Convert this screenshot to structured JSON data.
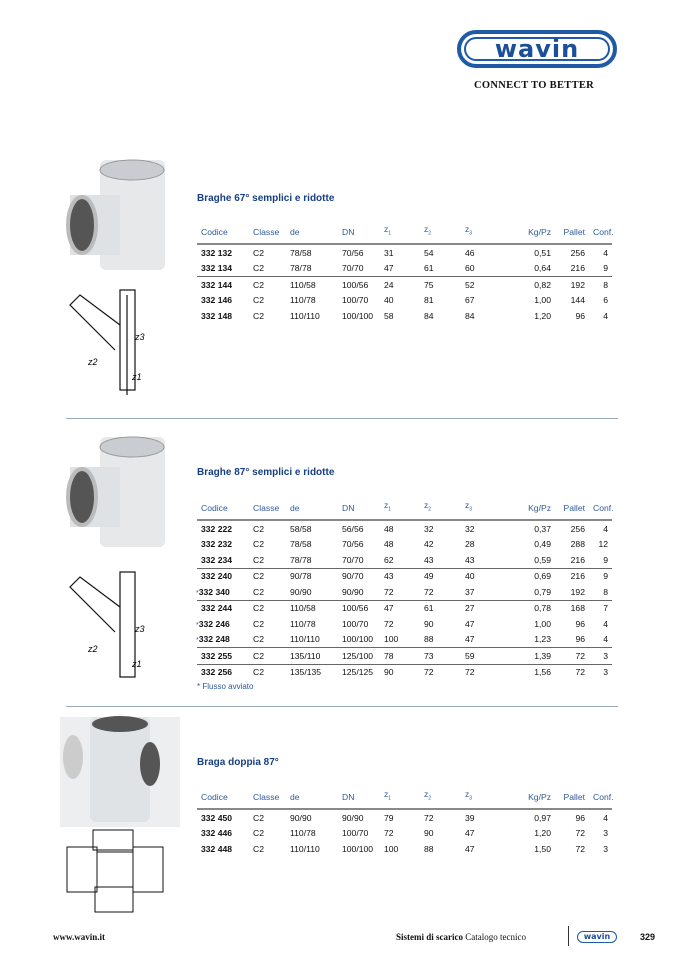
{
  "brand": {
    "logo_text": "wavin",
    "tagline": "CONNECT TO BETTER",
    "logo_color": "#1f5aa6"
  },
  "columns": [
    "Codice",
    "Classe",
    "de",
    "DN",
    "z1",
    "z2",
    "z3",
    "Kg/Pz",
    "Pallet",
    "Conf."
  ],
  "sections": [
    {
      "title": "Braghe 67° semplici e ridotte",
      "rows": [
        {
          "code": "332 132",
          "cls": "C2",
          "de": "78/58",
          "dn": "70/56",
          "z1": "31",
          "z2": "54",
          "z3": "46",
          "kg": "0,51",
          "pallet": "256",
          "conf": "4"
        },
        {
          "code": "332 134",
          "cls": "C2",
          "de": "78/78",
          "dn": "70/70",
          "z1": "47",
          "z2": "61",
          "z3": "60",
          "kg": "0,64",
          "pallet": "216",
          "conf": "9",
          "sep": true
        },
        {
          "code": "332 144",
          "cls": "C2",
          "de": "110/58",
          "dn": "100/56",
          "z1": "24",
          "z2": "75",
          "z3": "52",
          "kg": "0,82",
          "pallet": "192",
          "conf": "8"
        },
        {
          "code": "332 146",
          "cls": "C2",
          "de": "110/78",
          "dn": "100/70",
          "z1": "40",
          "z2": "81",
          "z3": "67",
          "kg": "1,00",
          "pallet": "144",
          "conf": "6"
        },
        {
          "code": "332 148",
          "cls": "C2",
          "de": "110/110",
          "dn": "100/100",
          "z1": "58",
          "z2": "84",
          "z3": "84",
          "kg": "1,20",
          "pallet": "96",
          "conf": "4"
        }
      ]
    },
    {
      "title": "Braghe 87° semplici e ridotte",
      "rows": [
        {
          "code": "332 222",
          "cls": "C2",
          "de": "58/58",
          "dn": "56/56",
          "z1": "48",
          "z2": "32",
          "z3": "32",
          "kg": "0,37",
          "pallet": "256",
          "conf": "4"
        },
        {
          "code": "332 232",
          "cls": "C2",
          "de": "78/58",
          "dn": "70/56",
          "z1": "48",
          "z2": "42",
          "z3": "28",
          "kg": "0,49",
          "pallet": "288",
          "conf": "12"
        },
        {
          "code": "332 234",
          "cls": "C2",
          "de": "78/78",
          "dn": "70/70",
          "z1": "62",
          "z2": "43",
          "z3": "43",
          "kg": "0,59",
          "pallet": "216",
          "conf": "9",
          "sep": true
        },
        {
          "code": "332 240",
          "cls": "C2",
          "de": "90/78",
          "dn": "90/70",
          "z1": "43",
          "z2": "49",
          "z3": "40",
          "kg": "0,69",
          "pallet": "216",
          "conf": "9"
        },
        {
          "code": "332 340",
          "star": "*",
          "cls": "C2",
          "de": "90/90",
          "dn": "90/90",
          "z1": "72",
          "z2": "72",
          "z3": "37",
          "kg": "0,79",
          "pallet": "192",
          "conf": "8",
          "sep": true
        },
        {
          "code": "332 244",
          "cls": "C2",
          "de": "110/58",
          "dn": "100/56",
          "z1": "47",
          "z2": "61",
          "z3": "27",
          "kg": "0,78",
          "pallet": "168",
          "conf": "7"
        },
        {
          "code": "332 246",
          "star": "*",
          "cls": "C2",
          "de": "110/78",
          "dn": "100/70",
          "z1": "72",
          "z2": "90",
          "z3": "47",
          "kg": "1,00",
          "pallet": "96",
          "conf": "4"
        },
        {
          "code": "332 248",
          "star": "*",
          "cls": "C2",
          "de": "110/110",
          "dn": "100/100",
          "z1": "100",
          "z2": "88",
          "z3": "47",
          "kg": "1,23",
          "pallet": "96",
          "conf": "4",
          "sep": true
        },
        {
          "code": "332 255",
          "cls": "C2",
          "de": "135/110",
          "dn": "125/100",
          "z1": "78",
          "z2": "73",
          "z3": "59",
          "kg": "1,39",
          "pallet": "72",
          "conf": "3",
          "sep": true
        },
        {
          "code": "332 256",
          "cls": "C2",
          "de": "135/135",
          "dn": "125/125",
          "z1": "90",
          "z2": "72",
          "z3": "72",
          "kg": "1,56",
          "pallet": "72",
          "conf": "3"
        }
      ],
      "note": "* Flusso avviato"
    },
    {
      "title": "Braga doppia 87°",
      "rows": [
        {
          "code": "332 450",
          "cls": "C2",
          "de": "90/90",
          "dn": "90/90",
          "z1": "79",
          "z2": "72",
          "z3": "39",
          "kg": "0,97",
          "pallet": "96",
          "conf": "4"
        },
        {
          "code": "332 446",
          "cls": "C2",
          "de": "110/78",
          "dn": "100/70",
          "z1": "72",
          "z2": "90",
          "z3": "47",
          "kg": "1,20",
          "pallet": "72",
          "conf": "3"
        },
        {
          "code": "332 448",
          "cls": "C2",
          "de": "110/110",
          "dn": "100/100",
          "z1": "100",
          "z2": "88",
          "z3": "47",
          "kg": "1,50",
          "pallet": "72",
          "conf": "3"
        }
      ]
    }
  ],
  "footer": {
    "website": "www.wavin.it",
    "section_bold": "Sistemi di scarico",
    "section_rest": " Catalogo tecnico",
    "logo_text": "wavin",
    "page": "329"
  }
}
